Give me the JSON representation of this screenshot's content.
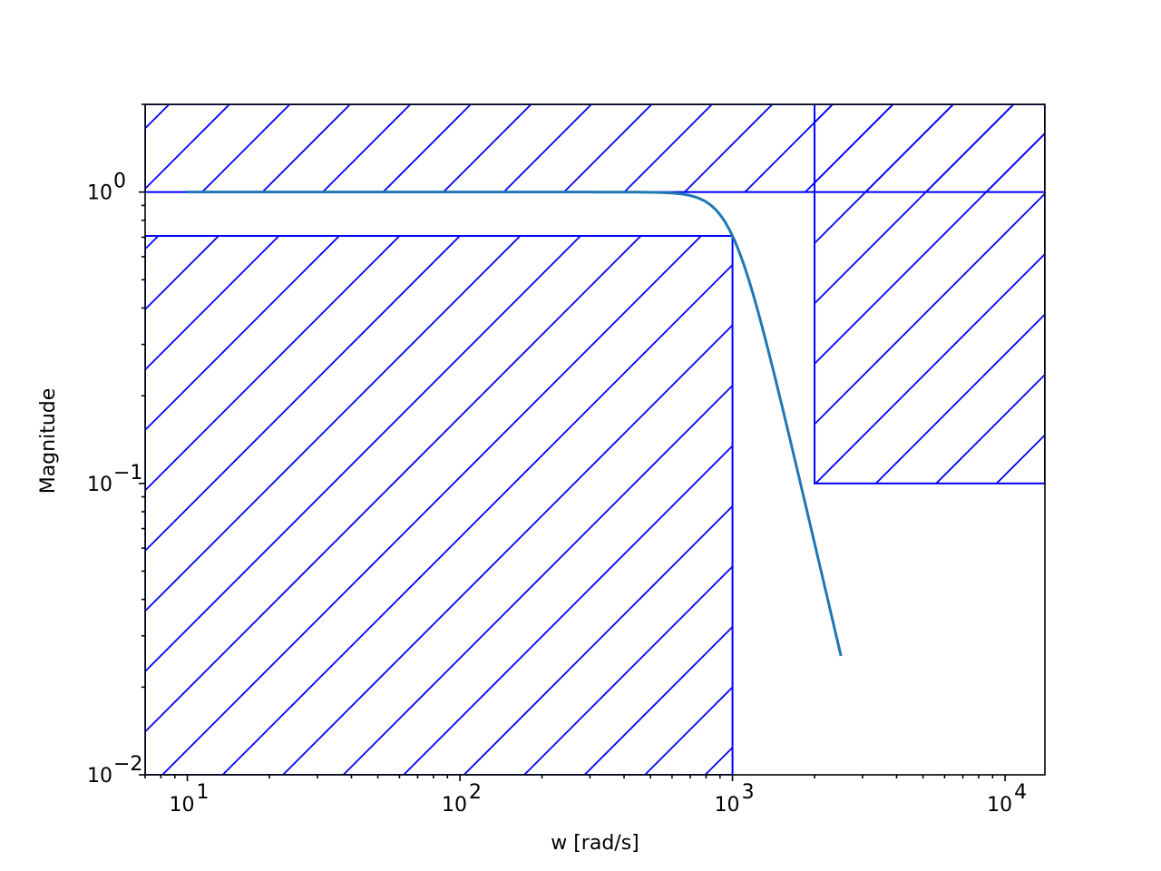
{
  "chart_data": {
    "type": "line",
    "xlabel": "w [rad/s]",
    "ylabel": "Magnitude",
    "xscale": "log",
    "yscale": "log",
    "xlim": [
      7,
      14000
    ],
    "ylim": [
      0.01,
      2
    ],
    "grid": false,
    "x_ticks": [
      {
        "value": 10,
        "base": "10",
        "exp": "1"
      },
      {
        "value": 100,
        "base": "10",
        "exp": "2"
      },
      {
        "value": 1000,
        "base": "10",
        "exp": "3"
      },
      {
        "value": 10000,
        "base": "10",
        "exp": "4"
      }
    ],
    "y_ticks": [
      {
        "value": 0.01,
        "base": "10",
        "exp": "−2"
      },
      {
        "value": 0.1,
        "base": "10",
        "exp": "−1"
      },
      {
        "value": 1,
        "base": "10",
        "exp": "0"
      }
    ],
    "series": [
      {
        "filter": "butterworth-lowpass",
        "order": 4,
        "cutoff": 1000,
        "x_start": 10,
        "x_end": 2500,
        "color": "#1f77b4"
      }
    ],
    "constraint_regions": [
      {
        "x": [
          7,
          14000
        ],
        "y": [
          1,
          2
        ]
      },
      {
        "x": [
          7,
          1000
        ],
        "y": [
          0.01,
          0.7071
        ]
      },
      {
        "x": [
          2000,
          14000
        ],
        "y": [
          0.1,
          2
        ]
      }
    ],
    "constraint_color": "#0000ff"
  }
}
